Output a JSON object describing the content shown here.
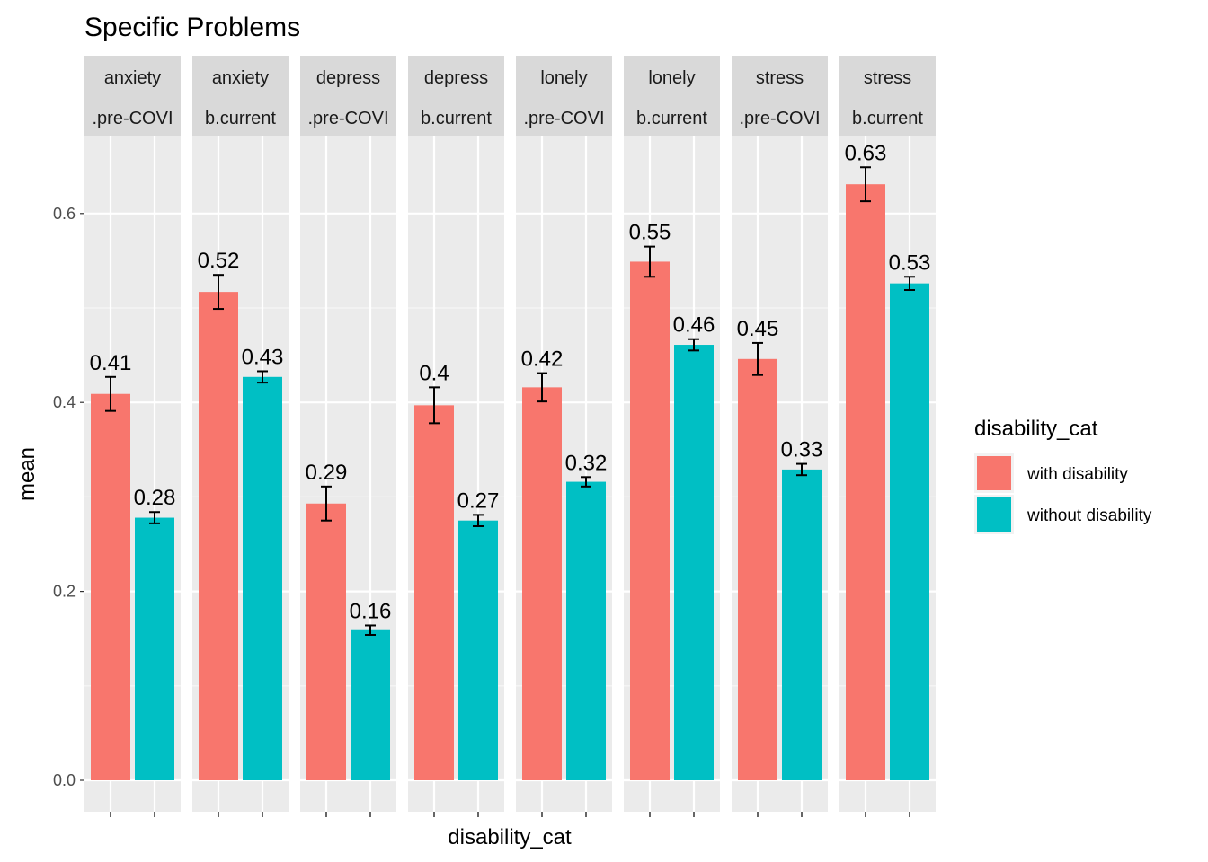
{
  "chart_data": {
    "type": "bar",
    "title": "Specific Problems",
    "xlabel": "disability_cat",
    "ylabel": "mean",
    "ylim": [
      0,
      0.68
    ],
    "yticks": [
      0.0,
      0.2,
      0.4,
      0.6
    ],
    "ytick_labels": [
      "0.0",
      "0.2",
      "0.4",
      "0.6"
    ],
    "grid": true,
    "legend": {
      "title": "disability_cat",
      "position": "right",
      "entries": [
        {
          "name": "with disability",
          "color": "#F8766D"
        },
        {
          "name": "without disability",
          "color": "#00BFC4"
        }
      ]
    },
    "series": [
      {
        "name": "with disability",
        "color": "#F8766D"
      },
      {
        "name": "without disability",
        "color": "#00BFC4"
      }
    ],
    "facets": [
      {
        "strip1": "anxiety",
        "strip2": ".pre-COVI",
        "values": [
          0.409,
          0.278
        ],
        "errors": [
          0.018,
          0.006
        ],
        "labels": [
          "0.41",
          "0.28"
        ]
      },
      {
        "strip1": "anxiety",
        "strip2": "b.current",
        "values": [
          0.517,
          0.427
        ],
        "errors": [
          0.018,
          0.006
        ],
        "labels": [
          "0.52",
          "0.43"
        ]
      },
      {
        "strip1": "depress",
        "strip2": ".pre-COVI",
        "values": [
          0.293,
          0.159
        ],
        "errors": [
          0.018,
          0.005
        ],
        "labels": [
          "0.29",
          "0.16"
        ]
      },
      {
        "strip1": "depress",
        "strip2": "b.current",
        "values": [
          0.397,
          0.275
        ],
        "errors": [
          0.019,
          0.006
        ],
        "labels": [
          "0.4",
          "0.27"
        ]
      },
      {
        "strip1": "lonely",
        "strip2": ".pre-COVI",
        "values": [
          0.416,
          0.316
        ],
        "errors": [
          0.015,
          0.005
        ],
        "labels": [
          "0.42",
          "0.32"
        ]
      },
      {
        "strip1": "lonely",
        "strip2": "b.current",
        "values": [
          0.549,
          0.461
        ],
        "errors": [
          0.016,
          0.006
        ],
        "labels": [
          "0.55",
          "0.46"
        ]
      },
      {
        "strip1": "stress",
        "strip2": ".pre-COVI",
        "values": [
          0.446,
          0.329
        ],
        "errors": [
          0.017,
          0.006
        ],
        "labels": [
          "0.45",
          "0.33"
        ]
      },
      {
        "strip1": "stress",
        "strip2": "b.current",
        "values": [
          0.631,
          0.526
        ],
        "errors": [
          0.018,
          0.007
        ],
        "labels": [
          "0.63",
          "0.53"
        ]
      }
    ]
  }
}
